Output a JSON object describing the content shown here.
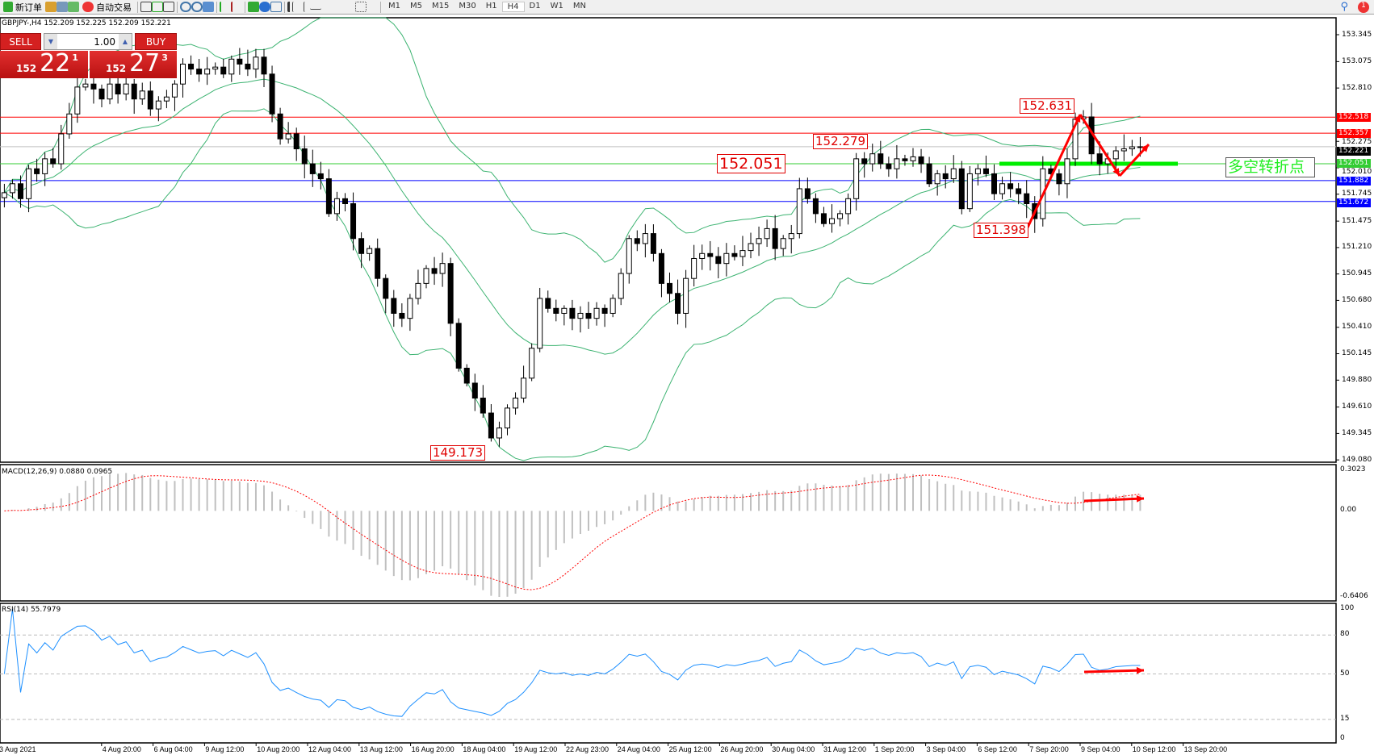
{
  "toolbar": {
    "new_order": "新订单",
    "auto_trading": "自动交易",
    "timeframes": [
      "M1",
      "M5",
      "M15",
      "M30",
      "H1",
      "H4",
      "D1",
      "W1",
      "MN"
    ],
    "active_timeframe": "H4",
    "notification_count": "1"
  },
  "symbol_header": "GBPJPY-,H4  152.209 152.225 152.209 152.221",
  "trade_panel": {
    "sell_label": "SELL",
    "buy_label": "BUY",
    "lot": "1.00",
    "sell_big": "152",
    "sell_main": "22",
    "sell_frac": "1",
    "buy_big": "152",
    "buy_main": "27",
    "buy_frac": "3",
    "color": "#d42020"
  },
  "price_axis": {
    "labels": [
      "153.345",
      "153.075",
      "152.810",
      "152.275",
      "152.010",
      "151.745",
      "151.475",
      "151.210",
      "150.945",
      "150.680",
      "150.410",
      "150.145",
      "149.880",
      "149.610",
      "149.345",
      "149.080"
    ],
    "range": [
      149.08,
      153.345
    ]
  },
  "horizontal_lines": [
    {
      "price": "152.518",
      "color": "#ff0000"
    },
    {
      "price": "152.357",
      "color": "#ff0000"
    },
    {
      "price": "152.221",
      "color": "#000000",
      "line_color": "#c0c0c0"
    },
    {
      "price": "152.051",
      "color": "#33cc33"
    },
    {
      "price": "151.882",
      "color": "#0000ff"
    },
    {
      "price": "151.672",
      "color": "#0000ff"
    }
  ],
  "annotations": {
    "high": "152.631",
    "level1": "152.279",
    "level2": "152.051",
    "low1": "151.398",
    "low2": "149.173",
    "turning_point": "多空转折点"
  },
  "chart_data": {
    "type": "candlestick",
    "closes": [
      151.76,
      151.85,
      151.7,
      152.0,
      151.95,
      152.1,
      152.05,
      152.35,
      152.55,
      152.82,
      152.85,
      152.8,
      152.7,
      152.85,
      152.75,
      152.85,
      152.7,
      152.78,
      152.6,
      152.68,
      152.72,
      152.85,
      153.05,
      153.0,
      152.95,
      153.0,
      153.02,
      152.95,
      153.1,
      153.05,
      153.0,
      153.12,
      152.95,
      152.55,
      152.3,
      152.35,
      152.2,
      152.05,
      151.95,
      151.9,
      151.55,
      151.7,
      151.65,
      151.3,
      151.15,
      151.2,
      150.9,
      150.7,
      150.55,
      150.5,
      150.7,
      150.85,
      151.0,
      150.95,
      151.05,
      150.45,
      150.0,
      149.85,
      149.7,
      149.55,
      149.3,
      149.4,
      149.6,
      149.7,
      149.9,
      150.2,
      150.7,
      150.6,
      150.55,
      150.6,
      150.5,
      150.55,
      150.5,
      150.6,
      150.55,
      150.7,
      150.95,
      151.3,
      151.25,
      151.35,
      151.15,
      150.85,
      150.75,
      150.55,
      150.9,
      151.1,
      151.15,
      151.12,
      151.05,
      151.15,
      151.12,
      151.18,
      151.25,
      151.3,
      151.4,
      151.2,
      151.3,
      151.35,
      151.8,
      151.7,
      151.55,
      151.45,
      151.5,
      151.55,
      151.7,
      152.1,
      152.05,
      152.15,
      152.05,
      152.0,
      152.1,
      152.08,
      152.12,
      152.05,
      151.85,
      151.95,
      151.9,
      152.0,
      151.6,
      151.95,
      152.0,
      151.95,
      151.75,
      151.85,
      151.8,
      151.75,
      151.65,
      151.5,
      152.0,
      151.95,
      151.85,
      152.1,
      152.5,
      152.52,
      152.15,
      152.05,
      152.1,
      152.18,
      152.2,
      152.22,
      152.221
    ],
    "indicators": {
      "bollinger_color": "#3cb371",
      "bull_color": "#ffffff",
      "bear_color": "#000000"
    },
    "x_tick_labels": [
      "3 Aug 2021",
      "4 Aug 20:00",
      "6 Aug 04:00",
      "9 Aug 12:00",
      "10 Aug 20:00",
      "12 Aug 04:00",
      "13 Aug 12:00",
      "16 Aug 20:00",
      "18 Aug 04:00",
      "19 Aug 12:00",
      "22 Aug 23:00",
      "24 Aug 04:00",
      "25 Aug 12:00",
      "26 Aug 20:00",
      "30 Aug 04:00",
      "31 Aug 12:00",
      "1 Sep 20:00",
      "3 Sep 04:00",
      "6 Sep 12:00",
      "7 Sep 20:00",
      "9 Sep 04:00",
      "10 Sep 12:00",
      "13 Sep 20:00"
    ]
  },
  "macd": {
    "title": "MACD(12,26,9) 0.0880 0.0965",
    "axis": [
      "0.3023",
      "0.00",
      "-0.6406"
    ],
    "range": [
      -0.6406,
      0.3023
    ],
    "hist_color": "#c0c0c0",
    "signal_color": "#ff0000"
  },
  "rsi": {
    "title": "RSI(14) 55.7979",
    "axis": [
      "100",
      "80",
      "50",
      "15",
      "0"
    ],
    "color": "#1e90ff"
  }
}
